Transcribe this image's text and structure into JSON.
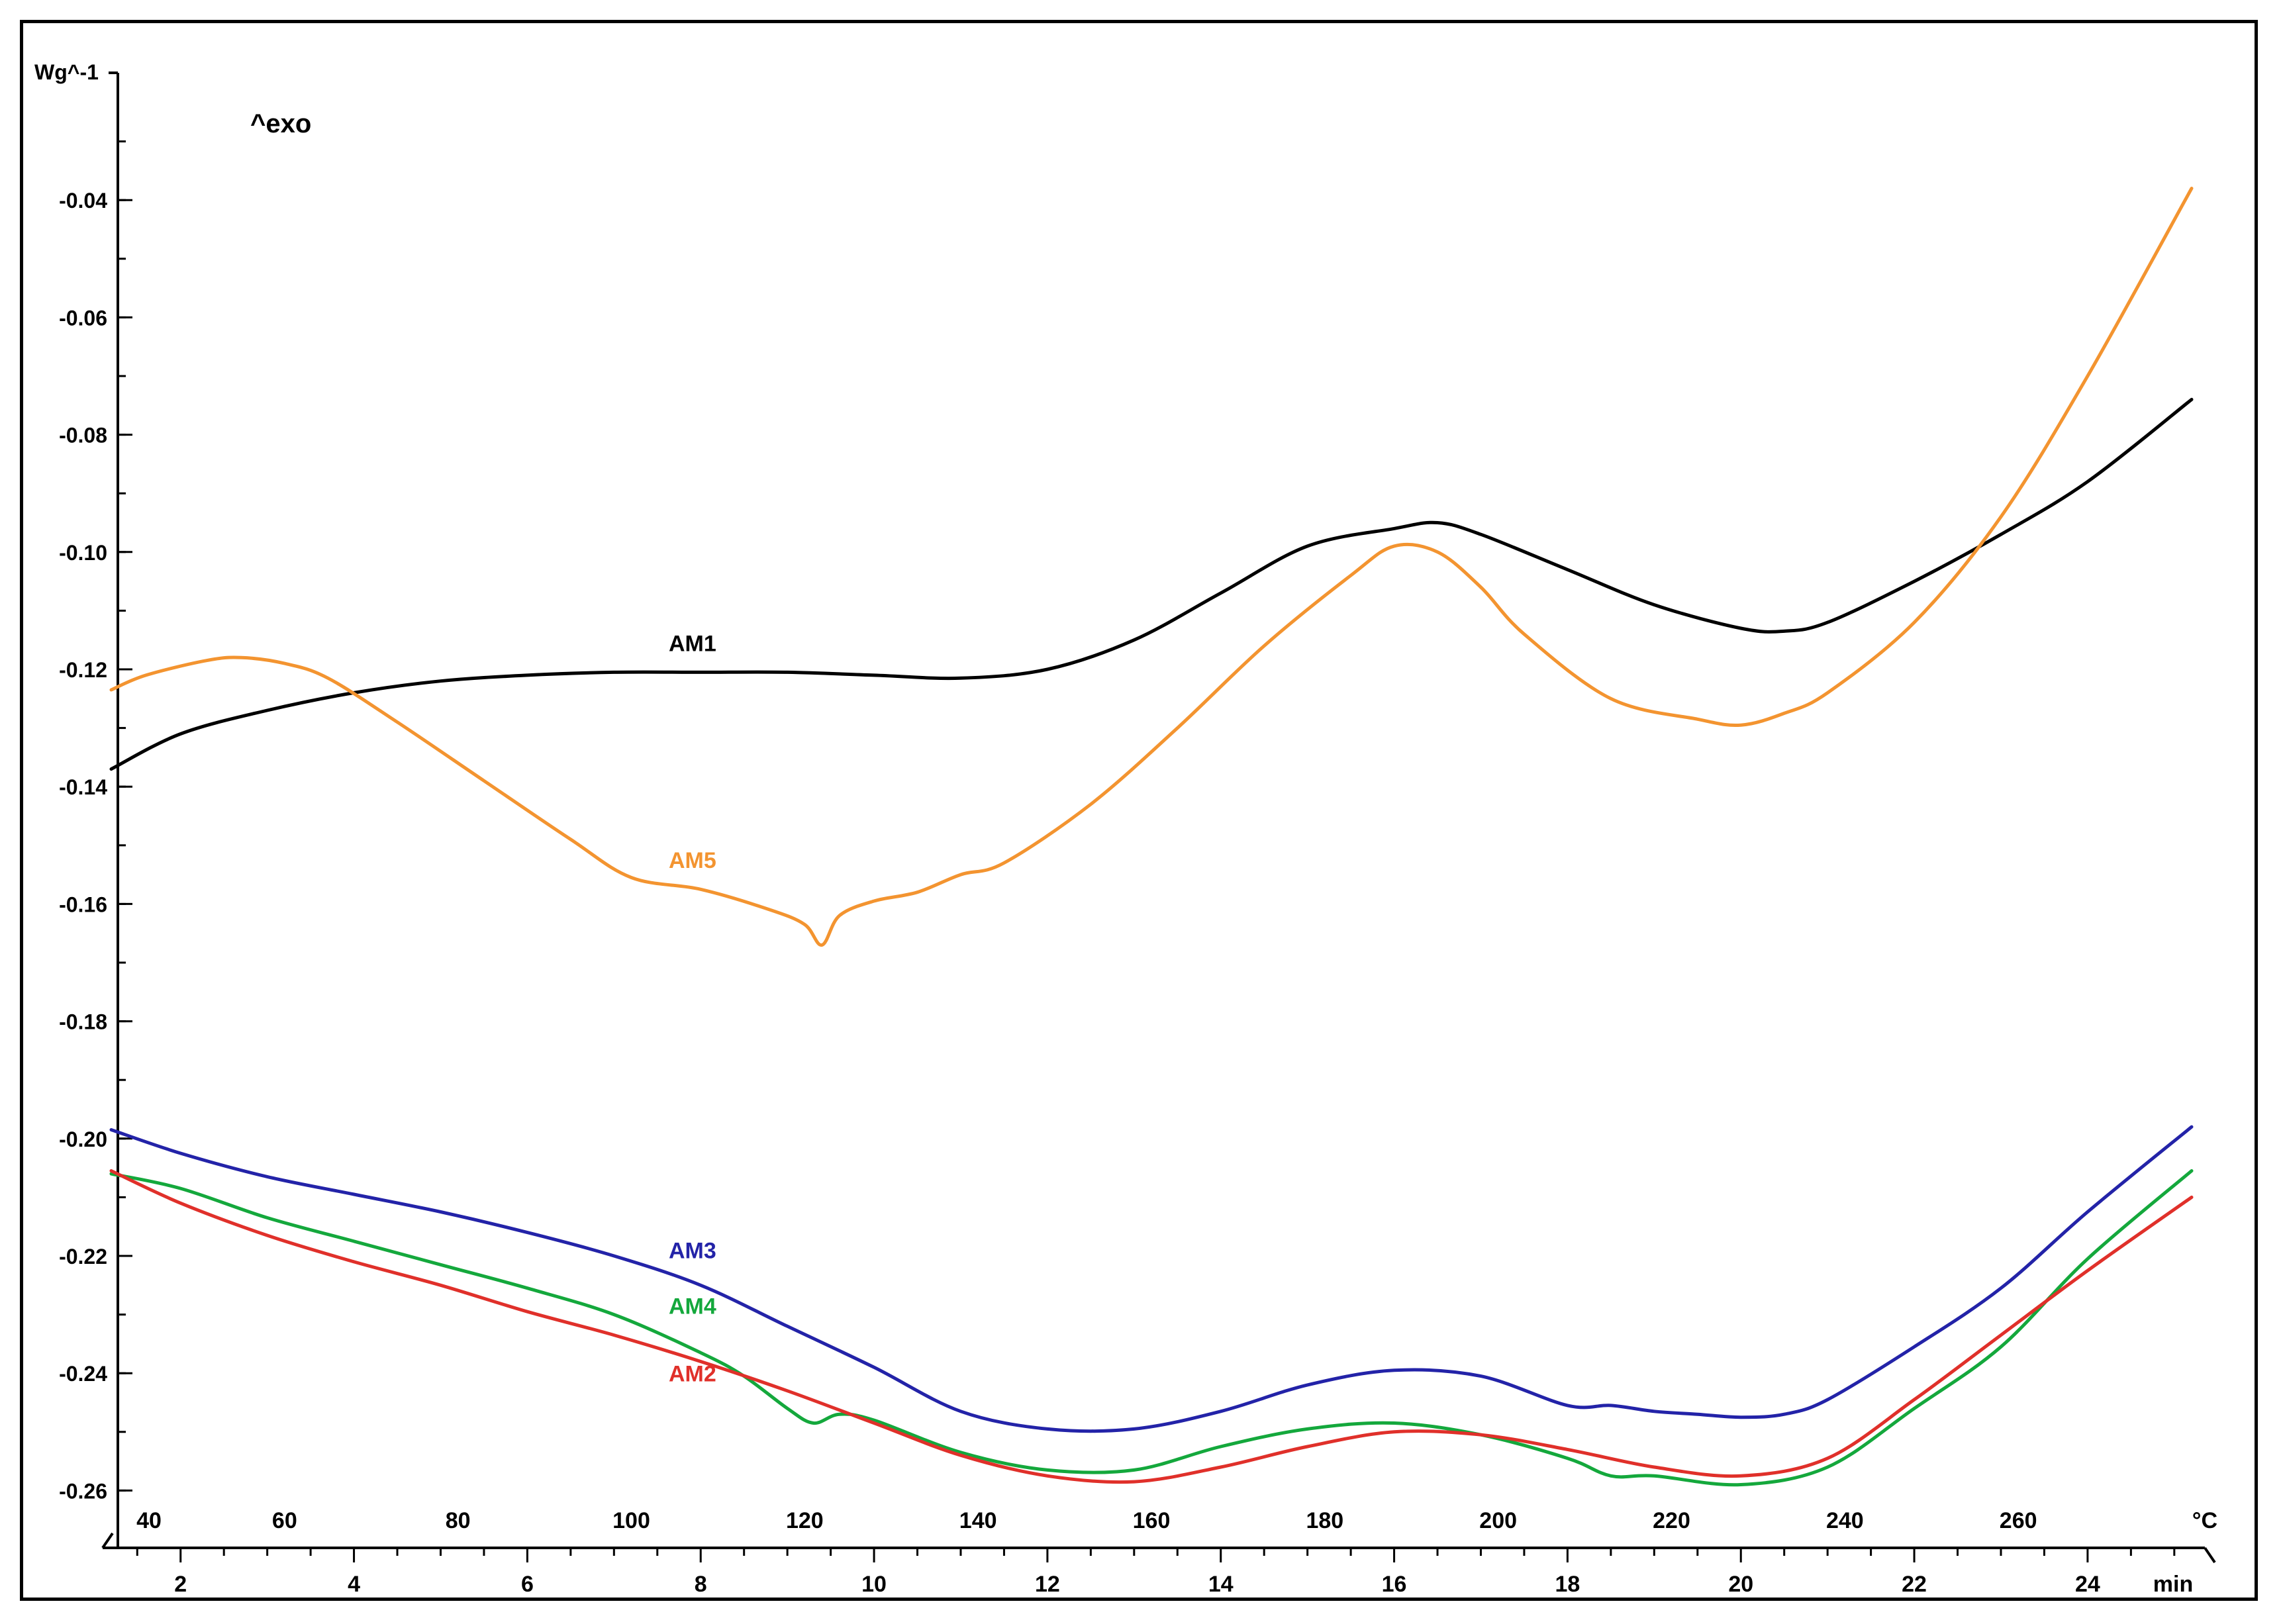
{
  "chart_data": {
    "type": "line",
    "title": "",
    "ylabel": "Wg^-1",
    "annotation": "^exo",
    "ylim": [
      -0.27,
      -0.02
    ],
    "xlim_min": [
      1.2,
      25.2
    ],
    "temp_per_min": 10,
    "temp_offset": 28,
    "y_ticks": [
      "-0.04",
      "-0.06",
      "-0.08",
      "-0.10",
      "-0.12",
      "-0.14",
      "-0.16",
      "-0.18",
      "-0.20",
      "-0.22",
      "-0.24",
      "-0.26"
    ],
    "y_tick_values": [
      -0.04,
      -0.06,
      -0.08,
      -0.1,
      -0.12,
      -0.14,
      -0.16,
      -0.18,
      -0.2,
      -0.22,
      -0.24,
      -0.26
    ],
    "x_temp_ticks": [
      "40",
      "60",
      "80",
      "100",
      "120",
      "140",
      "160",
      "180",
      "200",
      "220",
      "240",
      "260"
    ],
    "x_temp_unit": "°C",
    "x_time_ticks": [
      "2",
      "4",
      "6",
      "8",
      "10",
      "12",
      "14",
      "16",
      "18",
      "20",
      "22",
      "24"
    ],
    "x_time_unit": "min",
    "series": [
      {
        "name": "AM1",
        "color": "#000000",
        "label_at": [
          7.6,
          -0.118
        ],
        "x": [
          1.2,
          2,
          3,
          4,
          5,
          6,
          7,
          8,
          9,
          10,
          11,
          12,
          13,
          14,
          15,
          16,
          16.5,
          17,
          18,
          19,
          20,
          20.5,
          21,
          22,
          23,
          24,
          25.2
        ],
        "y": [
          -0.137,
          -0.131,
          -0.127,
          -0.124,
          -0.122,
          -0.121,
          -0.1205,
          -0.1205,
          -0.1205,
          -0.121,
          -0.1215,
          -0.12,
          -0.115,
          -0.107,
          -0.099,
          -0.096,
          -0.095,
          -0.097,
          -0.103,
          -0.109,
          -0.113,
          -0.1135,
          -0.112,
          -0.105,
          -0.097,
          -0.088,
          -0.074
        ]
      },
      {
        "name": "AM5",
        "color": "#f39430",
        "label_at": [
          7.6,
          -0.155
        ],
        "x": [
          1.2,
          1.6,
          2.3,
          2.7,
          3.2,
          3.7,
          4.5,
          5.5,
          6.5,
          7.2,
          8,
          8.8,
          9.2,
          9.4,
          9.6,
          10,
          10.5,
          11,
          11.5,
          12.5,
          13.5,
          14.5,
          15.5,
          16,
          16.5,
          17,
          17.5,
          18.5,
          19.5,
          20,
          20.5,
          21,
          22,
          23,
          24,
          25.2
        ],
        "y": [
          -0.1235,
          -0.121,
          -0.1185,
          -0.118,
          -0.119,
          -0.1215,
          -0.129,
          -0.139,
          -0.149,
          -0.1555,
          -0.1575,
          -0.161,
          -0.1635,
          -0.167,
          -0.162,
          -0.1595,
          -0.158,
          -0.155,
          -0.153,
          -0.143,
          -0.13,
          -0.116,
          -0.104,
          -0.099,
          -0.1,
          -0.106,
          -0.114,
          -0.125,
          -0.1285,
          -0.1295,
          -0.1275,
          -0.124,
          -0.112,
          -0.094,
          -0.07,
          -0.038
        ]
      },
      {
        "name": "AM3",
        "color": "#2323a8",
        "label_at": [
          7.6,
          -0.2215
        ],
        "x": [
          1.2,
          2,
          3,
          4,
          5,
          6,
          7,
          8,
          9,
          10,
          11,
          12,
          13,
          14,
          15,
          16,
          17,
          18,
          18.5,
          19,
          19.5,
          20,
          20.5,
          21,
          22,
          23,
          24,
          25.2
        ],
        "y": [
          -0.1985,
          -0.2025,
          -0.2065,
          -0.2095,
          -0.2125,
          -0.216,
          -0.22,
          -0.225,
          -0.232,
          -0.239,
          -0.2465,
          -0.2495,
          -0.2495,
          -0.2465,
          -0.242,
          -0.2395,
          -0.2405,
          -0.2455,
          -0.2455,
          -0.2465,
          -0.247,
          -0.2475,
          -0.247,
          -0.2445,
          -0.2355,
          -0.2255,
          -0.2125,
          -0.198
        ]
      },
      {
        "name": "AM4",
        "color": "#14a83c",
        "label_at": [
          7.6,
          -0.231
        ],
        "x": [
          1.2,
          2,
          3,
          4,
          5,
          6,
          7,
          8,
          8.5,
          9,
          9.3,
          9.6,
          10,
          11,
          12,
          13,
          14,
          15,
          16,
          17,
          18,
          18.5,
          19,
          20,
          21,
          22,
          23,
          24,
          25.2
        ],
        "y": [
          -0.206,
          -0.2085,
          -0.2135,
          -0.2175,
          -0.2215,
          -0.2255,
          -0.23,
          -0.2365,
          -0.2405,
          -0.246,
          -0.2485,
          -0.247,
          -0.248,
          -0.2535,
          -0.2565,
          -0.2565,
          -0.2525,
          -0.2495,
          -0.2485,
          -0.2505,
          -0.2545,
          -0.2575,
          -0.2575,
          -0.259,
          -0.256,
          -0.246,
          -0.2355,
          -0.2205,
          -0.2055
        ]
      },
      {
        "name": "AM2",
        "color": "#e0302a",
        "label_at": [
          7.6,
          -0.2425
        ],
        "x": [
          1.2,
          2,
          3,
          4,
          5,
          6,
          7,
          8,
          9,
          10,
          11,
          12,
          13,
          14,
          15,
          16,
          17,
          18,
          19,
          20,
          21,
          22,
          23,
          24,
          25.2
        ],
        "y": [
          -0.2055,
          -0.211,
          -0.2165,
          -0.221,
          -0.225,
          -0.2295,
          -0.2335,
          -0.238,
          -0.243,
          -0.2485,
          -0.254,
          -0.2575,
          -0.2585,
          -0.256,
          -0.2525,
          -0.25,
          -0.2505,
          -0.253,
          -0.256,
          -0.2575,
          -0.2545,
          -0.2445,
          -0.2335,
          -0.2225,
          -0.21
        ]
      }
    ]
  }
}
